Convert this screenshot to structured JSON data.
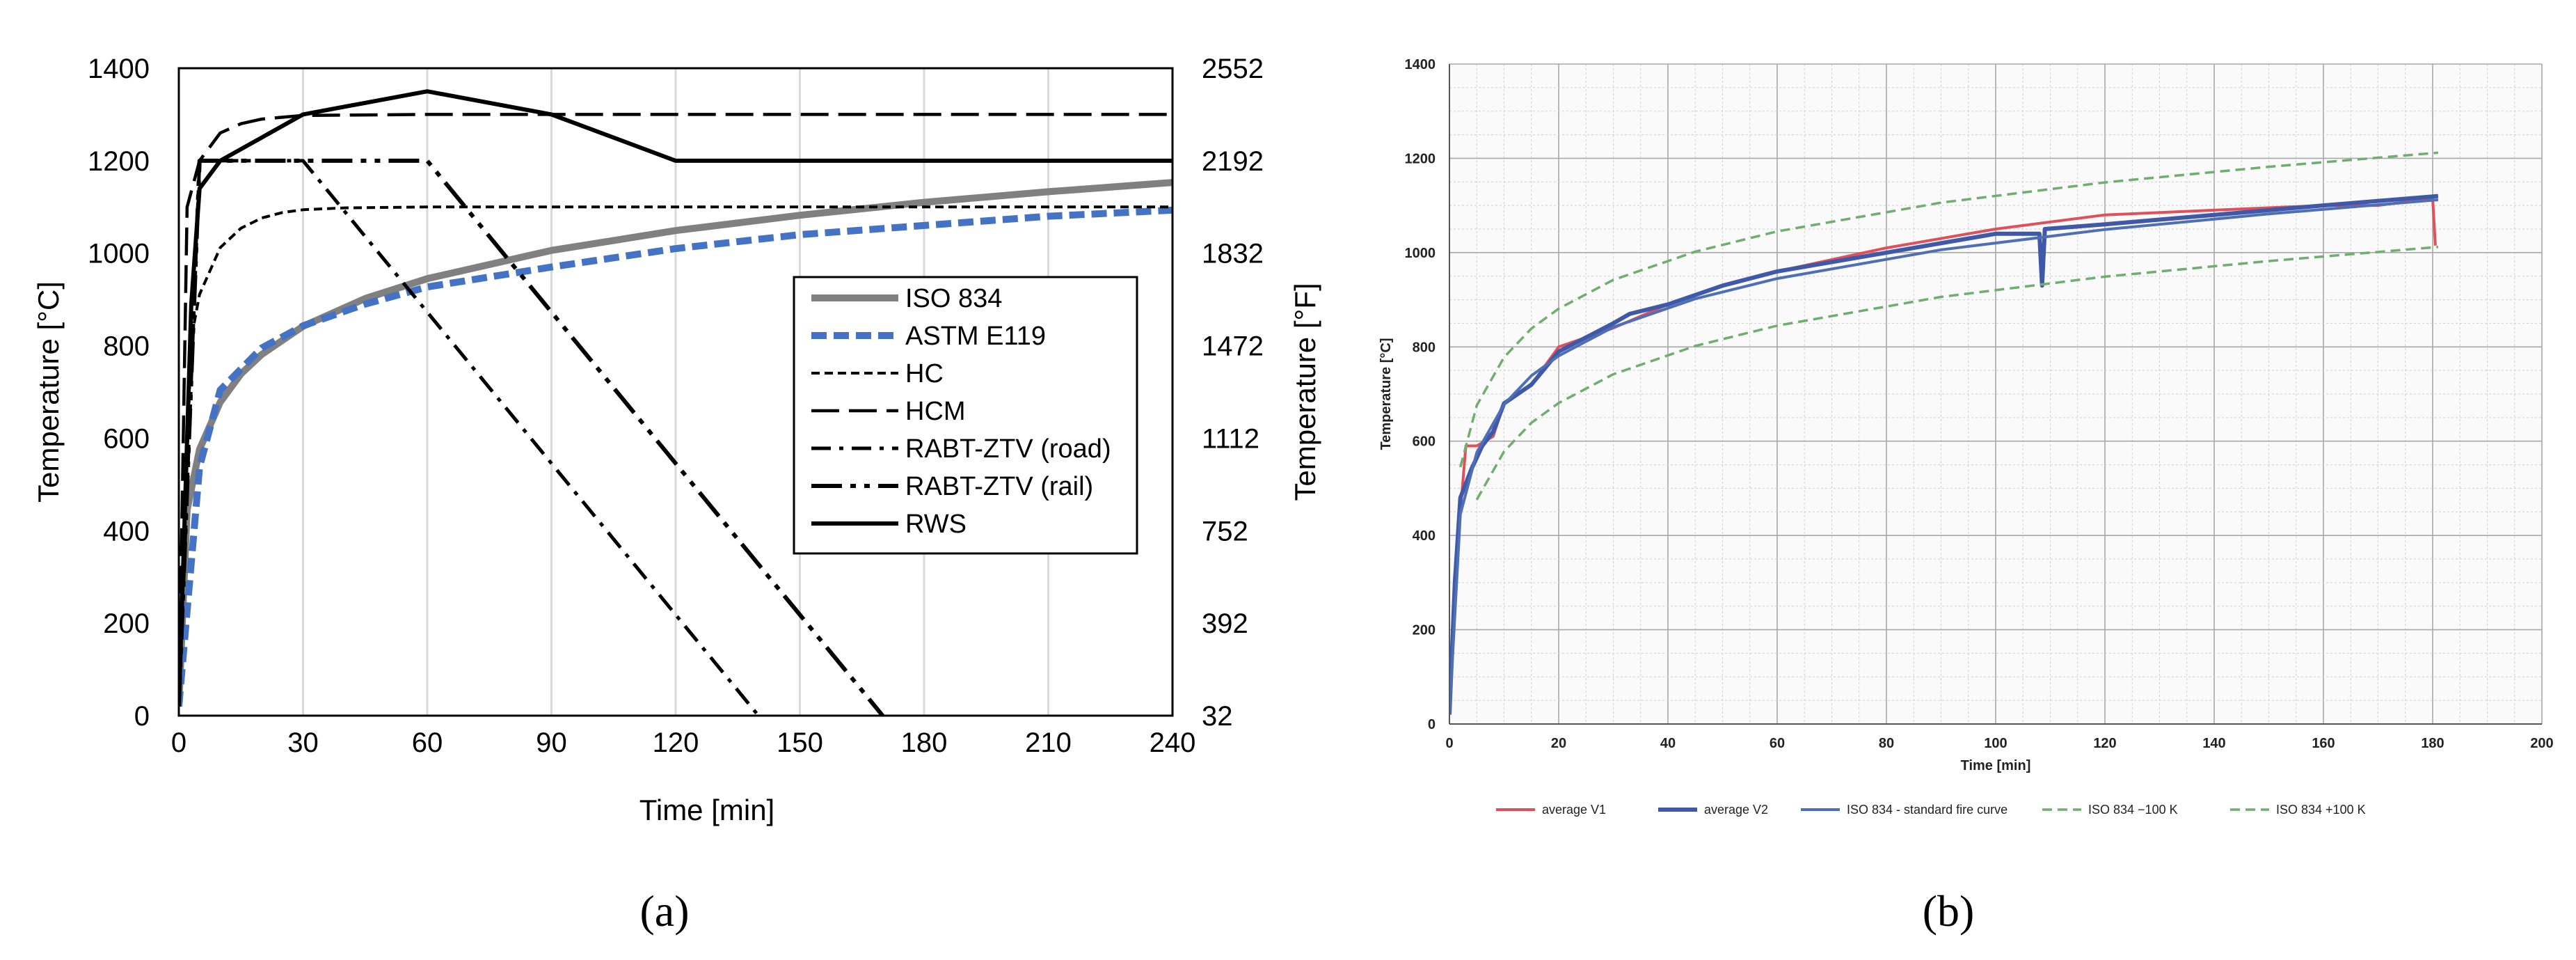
{
  "chart_data": [
    {
      "panel_label": "(a)",
      "type": "line",
      "xlabel": "Time [min]",
      "ylabel": "Temperature [°C]",
      "y2label": "Temperature [°F]",
      "xlim": [
        0,
        240
      ],
      "ylim": [
        0,
        1400
      ],
      "xticks": [
        0,
        30,
        60,
        90,
        120,
        150,
        180,
        210,
        240
      ],
      "yticks": [
        0,
        200,
        400,
        600,
        800,
        1000,
        1200,
        1400
      ],
      "y2ticks": [
        32,
        392,
        752,
        1112,
        1472,
        1832,
        2192,
        2552
      ],
      "grid": "vertical",
      "legend_position": "center-right",
      "series": [
        {
          "name": "ISO 834",
          "color": "#808080",
          "style": "solid-thick",
          "x": [
            0,
            2,
            5,
            10,
            15,
            20,
            30,
            45,
            60,
            90,
            120,
            150,
            180,
            210,
            240
          ],
          "y": [
            20,
            445,
            576,
            678,
            739,
            781,
            842,
            902,
            945,
            1006,
            1049,
            1082,
            1110,
            1133,
            1153
          ]
        },
        {
          "name": "ASTM E119",
          "color": "#4472C4",
          "style": "dashed-thick",
          "x": [
            0,
            5,
            10,
            20,
            30,
            45,
            60,
            90,
            120,
            150,
            180,
            210,
            240
          ],
          "y": [
            20,
            538,
            704,
            795,
            843,
            890,
            927,
            970,
            1010,
            1040,
            1060,
            1080,
            1093
          ]
        },
        {
          "name": "HC",
          "color": "#000000",
          "style": "short-dash",
          "x": [
            0,
            3,
            5,
            10,
            15,
            20,
            25,
            30,
            40,
            60,
            120,
            180,
            240
          ],
          "y": [
            20,
            816,
            911,
            1012,
            1054,
            1076,
            1088,
            1094,
            1098,
            1100,
            1100,
            1100,
            1100
          ]
        },
        {
          "name": "HCM",
          "color": "#000000",
          "style": "long-dash",
          "x": [
            0,
            2,
            5,
            10,
            15,
            20,
            30,
            60,
            120,
            180,
            240
          ],
          "y": [
            20,
            1100,
            1200,
            1260,
            1280,
            1290,
            1298,
            1300,
            1300,
            1300,
            1300
          ]
        },
        {
          "name": "RABT-ZTV (road)",
          "color": "#000000",
          "style": "dash-dot",
          "x": [
            0,
            5,
            30,
            140
          ],
          "y": [
            20,
            1200,
            1200,
            0
          ]
        },
        {
          "name": "RABT-ZTV (rail)",
          "color": "#000000",
          "style": "dash-dot-dot",
          "x": [
            0,
            5,
            60,
            170
          ],
          "y": [
            20,
            1200,
            1200,
            0
          ]
        },
        {
          "name": "RWS",
          "color": "#000000",
          "style": "solid",
          "x": [
            0,
            3,
            5,
            10,
            30,
            60,
            90,
            120,
            240
          ],
          "y": [
            20,
            890,
            1140,
            1200,
            1300,
            1350,
            1300,
            1200,
            1200
          ]
        }
      ]
    },
    {
      "panel_label": "(b)",
      "type": "line",
      "xlabel": "Time [min]",
      "ylabel": "Temperature [°C]",
      "xlim": [
        0,
        200
      ],
      "ylim": [
        0,
        1400
      ],
      "xticks": [
        0,
        20,
        40,
        60,
        80,
        100,
        120,
        140,
        160,
        180,
        200
      ],
      "yticks": [
        0,
        200,
        400,
        600,
        800,
        1000,
        1200,
        1400
      ],
      "grid": "both",
      "legend_position": "bottom",
      "series": [
        {
          "name": "average V1",
          "color": "#E0505A",
          "style": "solid",
          "x": [
            0,
            1,
            2,
            3,
            5,
            8,
            10,
            15,
            20,
            30,
            40,
            50,
            60,
            80,
            100,
            120,
            140,
            160,
            170,
            180,
            180.5
          ],
          "y": [
            20,
            250,
            450,
            590,
            590,
            610,
            680,
            720,
            800,
            840,
            890,
            930,
            960,
            1010,
            1050,
            1080,
            1090,
            1100,
            1100,
            1115,
            1015
          ]
        },
        {
          "name": "average V2",
          "color": "#3F59A8",
          "style": "solid-thick",
          "x": [
            0,
            1,
            2,
            4,
            6,
            8,
            10,
            15,
            20,
            25,
            30,
            33,
            40,
            50,
            60,
            70,
            80,
            90,
            100,
            108,
            108.5,
            109,
            120,
            140,
            160,
            181
          ],
          "y": [
            20,
            300,
            480,
            540,
            590,
            620,
            680,
            720,
            790,
            820,
            850,
            870,
            890,
            930,
            960,
            980,
            1000,
            1020,
            1040,
            1040,
            930,
            1050,
            1060,
            1080,
            1100,
            1120
          ]
        },
        {
          "name": "ISO 834 - standard fire curve",
          "color": "#4E6FB5",
          "style": "solid",
          "x": [
            0,
            2,
            5,
            10,
            15,
            20,
            30,
            45,
            60,
            90,
            120,
            150,
            181
          ],
          "y": [
            20,
            445,
            576,
            678,
            739,
            781,
            842,
            902,
            945,
            1006,
            1049,
            1082,
            1112
          ]
        },
        {
          "name": "ISO 834 −100 K",
          "color": "#6FAE6F",
          "style": "dashed",
          "x": [
            5,
            10,
            15,
            20,
            30,
            45,
            60,
            90,
            120,
            150,
            181
          ],
          "y": [
            476,
            578,
            639,
            681,
            742,
            802,
            845,
            906,
            949,
            982,
            1012
          ]
        },
        {
          "name": "ISO 834 +100 K",
          "color": "#6FAE6F",
          "style": "dashed",
          "x": [
            2,
            5,
            10,
            15,
            20,
            30,
            45,
            60,
            90,
            120,
            150,
            181
          ],
          "y": [
            545,
            676,
            778,
            839,
            881,
            942,
            1002,
            1045,
            1106,
            1149,
            1182,
            1212
          ]
        }
      ]
    }
  ]
}
